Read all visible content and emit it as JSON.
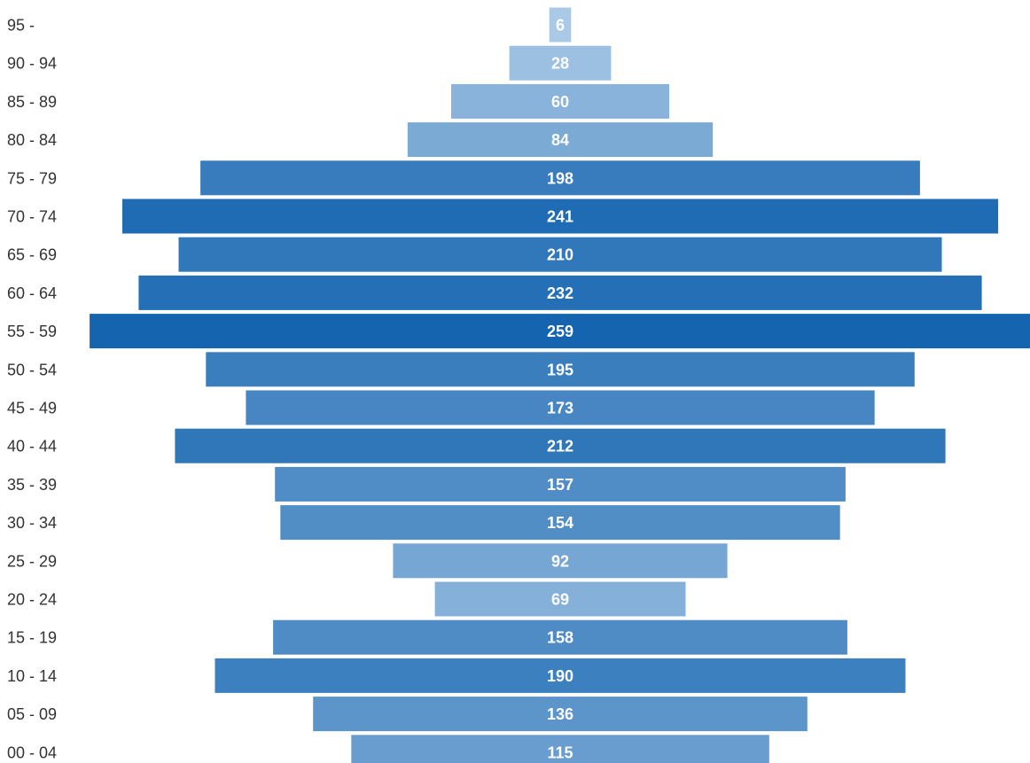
{
  "chart_data": {
    "type": "bar",
    "orientation": "horizontal-centered",
    "categories": [
      "95 -",
      "90 - 94",
      "85 - 89",
      "80 - 84",
      "75 - 79",
      "70 - 74",
      "65 - 69",
      "60 - 64",
      "55 - 59",
      "50 - 54",
      "45 - 49",
      "40 - 44",
      "35 - 39",
      "30 - 34",
      "25 - 29",
      "20 - 24",
      "15 - 19",
      "10 - 14",
      "05 - 09",
      "00 - 04"
    ],
    "values": [
      6,
      28,
      60,
      84,
      198,
      241,
      210,
      232,
      259,
      195,
      173,
      212,
      157,
      154,
      92,
      69,
      158,
      190,
      136,
      115
    ],
    "color_scale": {
      "low": "#a9c9e6",
      "high": "#1464b0"
    },
    "bar_label_color": "#ffffff",
    "category_label_color": "#333333",
    "grid": false,
    "legend": "none"
  }
}
